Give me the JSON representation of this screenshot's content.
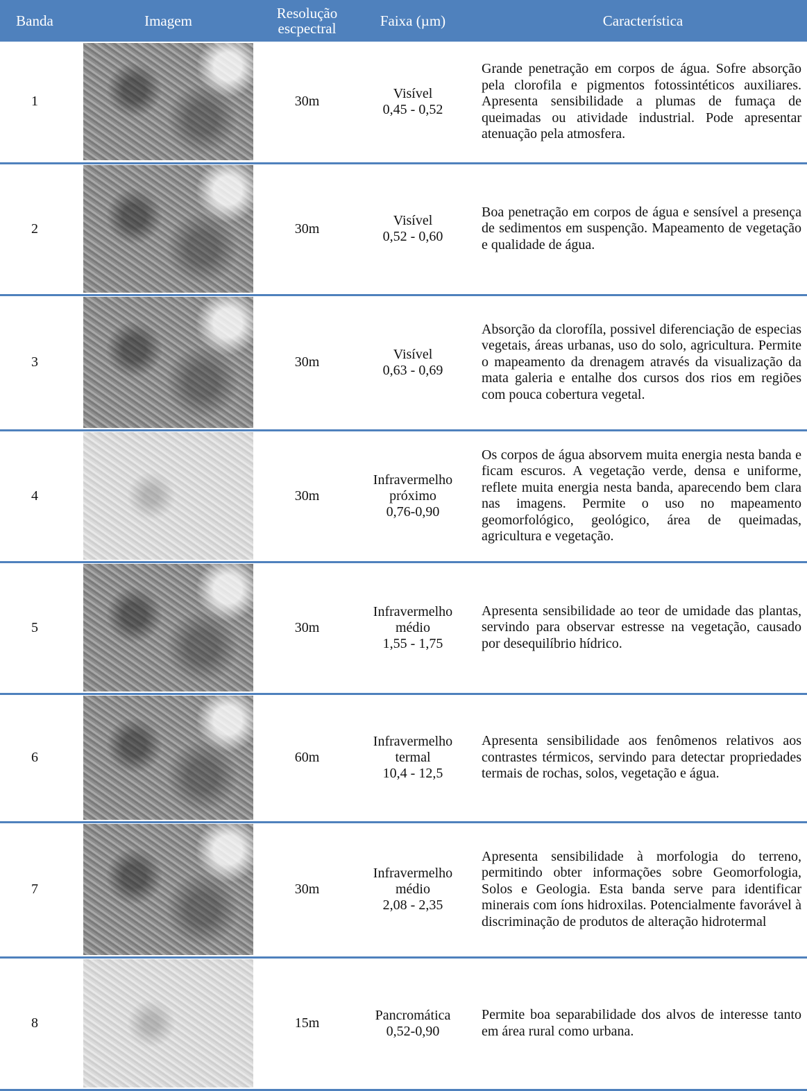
{
  "table": {
    "header": [
      "Banda",
      "Imagem",
      "Resolução escpectral",
      "Faixa (µm)",
      "Característica"
    ],
    "rows": [
      {
        "banda": 1,
        "resolucao": "30m",
        "faixa": [
          "Visível",
          "0,45 - 0,52"
        ],
        "caracteristica": "Grande penetração em corpos de água. Sofre absorção pela clorofila e pigmentos fotossintéticos auxiliares. Apresenta sensibilidade a plumas de fumaça de queimadas ou atividade industrial. Pode apresentar atenuação pela atmosfera."
      },
      {
        "banda": 2,
        "resolucao": "30m",
        "faixa": [
          "Visível",
          "0,52 - 0,60"
        ],
        "caracteristica": "Boa penetração em corpos de água e sensível a presença de sedimentos em suspenção. Mapeamento de vegetação e qualidade de água."
      },
      {
        "banda": 3,
        "resolucao": "30m",
        "faixa": [
          "Visível",
          "0,63 - 0,69"
        ],
        "caracteristica": "Absorção da clorofíla, possivel diferenciação de especias vegetais, áreas urbanas, uso do solo, agricultura. Permite o mapeamento da drenagem através da visualização da mata galeria e entalhe dos cursos dos rios em regiões com pouca cobertura vegetal."
      },
      {
        "banda": 4,
        "resolucao": "30m",
        "faixa": [
          "Infravermelho",
          "próximo",
          "0,76-0,90"
        ],
        "caracteristica": "Os corpos de água absorvem muita energia nesta banda e ficam escuros. A vegetação verde, densa e uniforme, reflete muita energia nesta banda, aparecendo bem clara nas imagens. Permite o uso no mapeamento geomorfológico, geológico, área de queimadas, agricultura e vegetação."
      },
      {
        "banda": 5,
        "resolucao": "30m",
        "faixa": [
          "Infravermelho",
          "médio",
          "1,55 - 1,75"
        ],
        "caracteristica": "Apresenta sensibilidade ao teor de umidade das plantas, servindo para observar estresse na vegetação, causado por desequilíbrio hídrico."
      },
      {
        "banda": 6,
        "resolucao": "60m",
        "faixa": [
          "Infravermelho",
          "termal",
          "10,4 - 12,5"
        ],
        "caracteristica": "Apresenta sensibilidade aos fenômenos relativos aos contrastes térmicos, servindo para detectar propriedades termais de rochas, solos, vegetação e água."
      },
      {
        "banda": 7,
        "resolucao": "30m",
        "faixa": [
          "Infravermelho",
          "médio",
          "2,08 - 2,35"
        ],
        "caracteristica": "Apresenta sensibilidade à morfologia do terreno, permitindo obter informações sobre Geomorfologia, Solos e Geologia. Esta banda serve para identificar minerais com íons hidroxilas. Potencialmente favorável à discriminação de produtos de alteração hidrotermal"
      },
      {
        "banda": 8,
        "resolucao": "15m",
        "faixa": [
          "Pancromática",
          "0,52-0,90"
        ],
        "caracteristica": "Permite boa separabilidade dos alvos de interesse tanto em área rural como urbana."
      }
    ]
  }
}
